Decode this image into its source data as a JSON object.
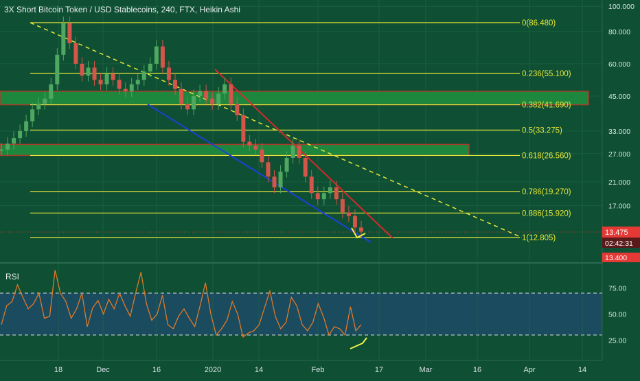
{
  "header": {
    "title": "3X Short Bitcoin Token / USD Stablecoins, 240, FTX, Heikin Ashi"
  },
  "rsi_label": "RSI",
  "colors": {
    "background": "#0f4f33",
    "fib_line": "#e8e83a",
    "zone_fill": "#1f8a3f",
    "zone_border": "#b23c2a",
    "trend_red": "#d42a2a",
    "trend_blue": "#1f3fd6",
    "candle_up": "#4fa860",
    "candle_down": "#d4554a",
    "rsi_line": "#e07a2a",
    "rsi_band": "#1c4a66",
    "price_badge": "#e53935"
  },
  "chart_data": [
    {
      "type": "candlestick",
      "title": "3X Short Bitcoin Token / USD Stablecoins, 240, FTX, Heikin Ashi",
      "scale": "log",
      "y_ticks": [
        "100.000",
        "80.000",
        "60.000",
        "45.000",
        "33.000",
        "27.000",
        "21.000",
        "17.000",
        "13.475",
        "13.400"
      ],
      "x_ticks": [
        "18",
        "Dec",
        "16",
        "2020",
        "14",
        "Feb",
        "17",
        "Mar",
        "16",
        "Apr",
        "14"
      ],
      "fib_levels": [
        {
          "label": "0(86.480)",
          "value": 86.48
        },
        {
          "label": "0.236(55.100)",
          "value": 55.1
        },
        {
          "label": "0.382(41.690)",
          "value": 41.69
        },
        {
          "label": "0.5(33.275)",
          "value": 33.275
        },
        {
          "label": "0.618(26.560)",
          "value": 26.56
        },
        {
          "label": "0.786(19.270)",
          "value": 19.27
        },
        {
          "label": "0.886(15.920)",
          "value": 15.92
        },
        {
          "label": "1(12.805)",
          "value": 12.805
        }
      ],
      "zones": [
        {
          "from": 41.69,
          "to": 47.0
        },
        {
          "from": 26.56,
          "to": 29.3
        }
      ],
      "current_price": "13.475",
      "countdown": "02:42:31",
      "low_badge": "13.400",
      "series": [
        {
          "name": "price",
          "values": [
            28,
            29.5,
            31,
            33,
            36,
            40,
            42,
            44,
            50,
            65,
            86,
            72,
            60,
            54,
            58,
            52,
            50,
            55,
            52,
            48,
            47,
            50,
            52,
            56,
            60,
            70,
            58,
            52,
            48,
            42,
            40,
            45,
            47,
            44,
            42,
            46,
            50,
            42,
            38,
            30,
            29,
            28,
            25,
            22,
            20,
            23,
            26,
            29,
            26,
            22,
            19,
            18,
            19,
            20,
            18,
            16,
            15.5,
            14,
            13.5
          ]
        }
      ]
    },
    {
      "type": "line",
      "title": "RSI",
      "y_ticks": [
        "75.00",
        "50.00",
        "25.00"
      ],
      "ylim": [
        10,
        100
      ],
      "bands": [
        30,
        70
      ],
      "series": [
        {
          "name": "RSI",
          "values": [
            40,
            58,
            62,
            78,
            66,
            55,
            60,
            70,
            46,
            48,
            92,
            70,
            62,
            46,
            55,
            70,
            38,
            56,
            63,
            50,
            64,
            55,
            70,
            58,
            48,
            70,
            90,
            60,
            44,
            50,
            68,
            40,
            36,
            48,
            55,
            46,
            38,
            58,
            80,
            50,
            30,
            36,
            44,
            62,
            50,
            28,
            32,
            34,
            40,
            56,
            72,
            48,
            36,
            42,
            66,
            58,
            40,
            34,
            42,
            60,
            47,
            30,
            38,
            36,
            30,
            57,
            34,
            40
          ]
        }
      ]
    }
  ]
}
